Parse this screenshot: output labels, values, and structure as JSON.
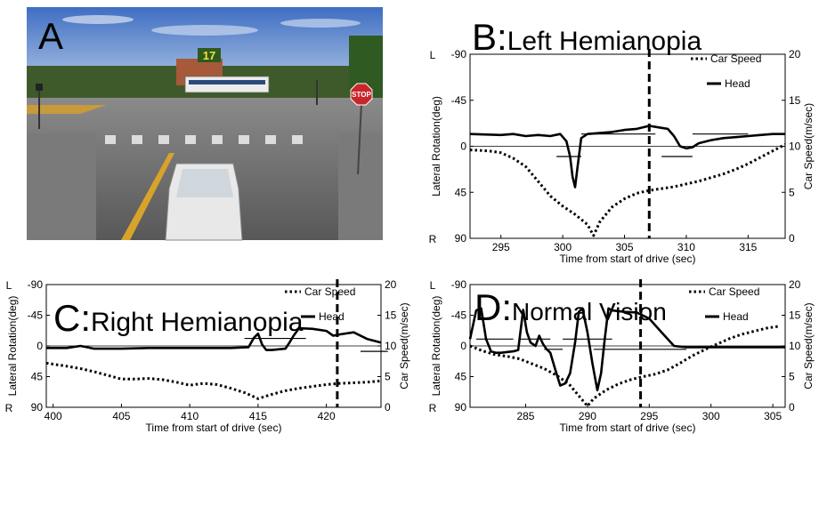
{
  "panel_a": {
    "label": "A",
    "billboard_number": "17",
    "stop_sign_text": "STOP"
  },
  "shared": {
    "xlabel": "Time from start of drive (sec)",
    "ylabel_left": "Lateral Rotation(deg)",
    "ylabel_right": "Car Speed(m/sec)",
    "legend_speed": "Car Speed",
    "legend_head": "Head",
    "ytick_L": "L",
    "ytick_R": "R"
  },
  "chart_data": [
    {
      "type": "line",
      "panel": "B",
      "title": "Left Hemianopia",
      "xlim": [
        292.5,
        318
      ],
      "xticks": [
        295,
        300,
        305,
        310,
        315
      ],
      "ylim_left": [
        -90,
        90
      ],
      "yticks_left": [
        "-90",
        "-45",
        "0",
        "45",
        "90"
      ],
      "ylim_right": [
        0,
        20
      ],
      "yticks_right": [
        "20",
        "15",
        "10",
        "5",
        "0"
      ],
      "vline_x": 307,
      "legend": [
        "Car Speed",
        "Head"
      ],
      "series": [
        {
          "name": "Head",
          "axis": "left",
          "style": "solid",
          "x": [
            292.5,
            295,
            296,
            297,
            298,
            299,
            299.8,
            300.3,
            300.6,
            300.8,
            301,
            301.2,
            301.5,
            302,
            303,
            304,
            305,
            306,
            307,
            308,
            308.5,
            309,
            309.5,
            310,
            310.5,
            311,
            312,
            313,
            314,
            315,
            316,
            317,
            318
          ],
          "y": [
            -12,
            -11,
            -12,
            -10,
            -11,
            -10,
            -12,
            -5,
            10,
            30,
            40,
            20,
            -8,
            -12,
            -13,
            -14,
            -16,
            -17,
            -20,
            -18,
            -17,
            -10,
            0,
            2,
            1,
            -3,
            -6,
            -8,
            -9,
            -10,
            -11,
            -12,
            -12
          ]
        },
        {
          "name": "Car Speed",
          "axis": "right",
          "style": "dotted",
          "x": [
            292.5,
            294,
            295,
            296,
            297,
            298,
            299,
            300,
            301,
            302,
            302.5,
            303,
            304,
            305,
            306,
            307,
            308,
            309,
            310,
            311,
            312,
            313,
            314,
            315,
            316,
            317,
            318
          ],
          "y": [
            9.6,
            9.5,
            9.3,
            8.7,
            7.8,
            6.2,
            4.6,
            3.5,
            2.6,
            1.5,
            0.3,
            1.8,
            3.4,
            4.3,
            4.9,
            5.2,
            5.4,
            5.6,
            5.9,
            6.2,
            6.6,
            7.0,
            7.5,
            8.1,
            8.8,
            9.5,
            10.2
          ]
        }
      ],
      "segments": [
        [
          299.5,
          301.5,
          10
        ],
        [
          301.5,
          307.5,
          -12
        ],
        [
          308,
          310.5,
          10
        ],
        [
          310.5,
          315,
          -12
        ]
      ]
    },
    {
      "type": "line",
      "panel": "C",
      "title": "Right Hemianopia",
      "xlim": [
        399.5,
        424
      ],
      "xticks": [
        400,
        405,
        410,
        415,
        420
      ],
      "ylim_left": [
        -90,
        90
      ],
      "yticks_left": [
        "-90",
        "-45",
        "0",
        "45",
        "90"
      ],
      "ylim_right": [
        0,
        20
      ],
      "yticks_right": [
        "20",
        "15",
        "10",
        "5",
        "0"
      ],
      "vline_x": 420.8,
      "legend": [
        "Car Speed",
        "Head"
      ],
      "series": [
        {
          "name": "Head",
          "axis": "left",
          "style": "solid",
          "x": [
            399.5,
            401,
            402,
            402.5,
            403,
            405,
            407,
            410,
            413,
            414.3,
            414.7,
            415,
            415.3,
            415.6,
            416,
            417,
            417.3,
            417.6,
            418,
            419,
            420,
            420.5,
            421,
            422,
            423,
            424
          ],
          "y": [
            3,
            3,
            0,
            2,
            4,
            4,
            3,
            3,
            3,
            2,
            -12,
            -18,
            -2,
            6,
            6,
            4,
            -5,
            -15,
            -26,
            -25,
            -22,
            -15,
            -17,
            -20,
            -10,
            -5
          ]
        },
        {
          "name": "Car Speed",
          "axis": "right",
          "style": "dotted",
          "x": [
            399.5,
            401,
            402,
            403,
            404,
            405,
            406,
            407,
            408,
            409,
            410,
            411,
            412,
            413,
            414,
            415,
            416,
            417,
            418,
            419,
            420,
            421,
            422,
            423,
            424
          ],
          "y": [
            7.2,
            6.7,
            6.3,
            5.8,
            5.2,
            4.6,
            4.6,
            4.7,
            4.5,
            4.1,
            3.6,
            3.9,
            3.7,
            3.1,
            2.4,
            1.4,
            2.1,
            2.7,
            3.1,
            3.4,
            3.7,
            3.9,
            4.0,
            4.1,
            4.3
          ]
        }
      ],
      "segments": [
        [
          414,
          418.5,
          -11
        ],
        [
          422.5,
          424.5,
          8
        ]
      ]
    },
    {
      "type": "line",
      "panel": "D",
      "title": "Normal Vision",
      "xlim": [
        280.5,
        306
      ],
      "xticks": [
        285,
        290,
        295,
        300,
        305
      ],
      "ylim_left": [
        -90,
        90
      ],
      "yticks_left": [
        "-90",
        "-45",
        "0",
        "45",
        "90"
      ],
      "ylim_right": [
        0,
        20
      ],
      "yticks_right": [
        "20",
        "15",
        "10",
        "5",
        "0"
      ],
      "vline_x": 294.3,
      "legend": [
        "Car Speed",
        "Head"
      ],
      "series": [
        {
          "name": "Head",
          "axis": "left",
          "style": "solid",
          "x": [
            280.5,
            281,
            281.4,
            281.8,
            282.2,
            282.6,
            283,
            284,
            284.4,
            284.8,
            285.1,
            285.4,
            285.8,
            286.1,
            286.4,
            286.7,
            287,
            287.4,
            287.8,
            288.2,
            288.6,
            289,
            289.3,
            289.6,
            290,
            290.4,
            290.8,
            291.1,
            291.4,
            291.7,
            292,
            293,
            294,
            295,
            296,
            297,
            298,
            299,
            300,
            301,
            302,
            303,
            304,
            305,
            306
          ],
          "y": [
            -10,
            -52,
            -55,
            -10,
            8,
            10,
            10,
            8,
            6,
            -53,
            -20,
            -5,
            0,
            -15,
            -3,
            5,
            10,
            35,
            58,
            55,
            40,
            -5,
            -50,
            -55,
            -20,
            25,
            65,
            40,
            -10,
            -55,
            -52,
            -50,
            -49,
            -40,
            -20,
            0,
            2,
            2,
            2,
            2,
            2,
            2,
            2,
            2,
            2
          ]
        },
        {
          "name": "Car Speed",
          "axis": "right",
          "style": "dotted",
          "x": [
            280.5,
            281.5,
            282.5,
            283.5,
            284.5,
            285.5,
            286.5,
            287.5,
            288.5,
            289.5,
            290,
            290.5,
            291.5,
            292.5,
            293.5,
            294.5,
            295.5,
            296.5,
            297.5,
            298.5,
            299.5,
            300.5,
            301.5,
            302.5,
            303.5,
            304.5,
            305.5
          ],
          "y": [
            10,
            9.2,
            8.6,
            8.3,
            7.9,
            7.1,
            6.3,
            5.2,
            3.8,
            1.4,
            0.2,
            1.4,
            2.8,
            3.8,
            4.5,
            5.0,
            5.4,
            6.1,
            7.2,
            8.4,
            9.4,
            10.3,
            11.2,
            11.9,
            12.4,
            12.9,
            13.2
          ]
        }
      ],
      "segments": [
        [
          281,
          284,
          -10
        ],
        [
          284.5,
          287,
          -10
        ],
        [
          286.5,
          288,
          5
        ],
        [
          288,
          292,
          -10
        ],
        [
          290.5,
          298,
          5
        ]
      ]
    }
  ]
}
